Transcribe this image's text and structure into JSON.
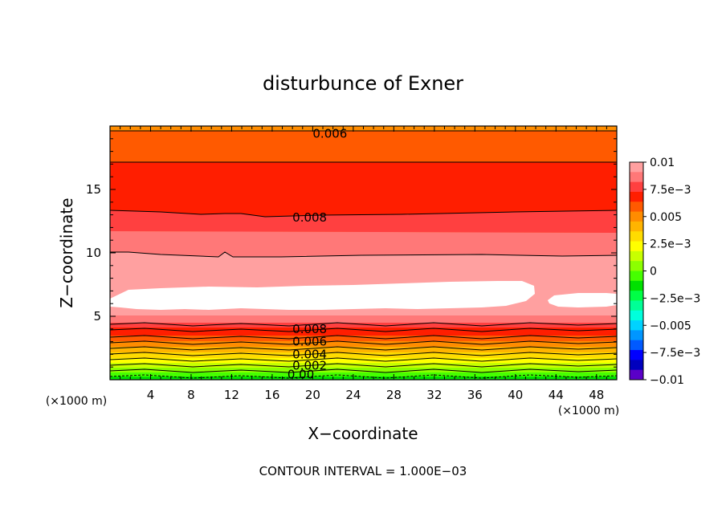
{
  "chart_data": {
    "type": "heatmap",
    "title": "disturbunce of Exner",
    "xlabel": "X−coordinate",
    "ylabel": "Z−coordinate",
    "x_unit": "(×1000 m)",
    "y_unit": "(×1000 m)",
    "xlim": [
      0,
      50
    ],
    "ylim": [
      0,
      20
    ],
    "x_ticks": [
      4,
      8,
      12,
      16,
      20,
      24,
      28,
      32,
      36,
      40,
      44,
      48
    ],
    "y_ticks": [
      5,
      10,
      15
    ],
    "note": "CONTOUR INTERVAL = 1.000E−03",
    "contour_labels": [
      {
        "text": "0.006",
        "x": 20,
        "z": 19.4
      },
      {
        "text": "0.008",
        "x": 18,
        "z": 12.8
      },
      {
        "text": "0.008",
        "x": 18,
        "z": 4.0
      },
      {
        "text": "0.006",
        "x": 18,
        "z": 3.0
      },
      {
        "text": "0.004",
        "x": 18,
        "z": 2.0
      },
      {
        "text": "0.002",
        "x": 18,
        "z": 1.1
      },
      {
        "text": "0.00",
        "x": 17.5,
        "z": 0.4
      }
    ],
    "colorbar": {
      "labels": [
        "0.01",
        "7.5e−3",
        "0.005",
        "2.5e−3",
        "0",
        "−2.5e−3",
        "−0.005",
        "−7.5e−3",
        "−0.01"
      ],
      "colors": [
        "#ffa0a0",
        "#ff7878",
        "#ff4040",
        "#ff1e00",
        "#ff5a00",
        "#ff8c00",
        "#ffb400",
        "#ffdc00",
        "#ffff00",
        "#c8ff00",
        "#8cff00",
        "#46ff00",
        "#00e100",
        "#00ff46",
        "#00ff96",
        "#00ffdc",
        "#00d2ff",
        "#0096ff",
        "#005aff",
        "#0000ff",
        "#0000be",
        "#5a00c8"
      ]
    },
    "colors": {
      "white_band": "#ffffff",
      "pale_red": "#ffa0a0",
      "light_red": "#ff7878",
      "red": "#ff1e00",
      "orange_red": "#ff5a00",
      "orange": "#ff8c00"
    }
  }
}
